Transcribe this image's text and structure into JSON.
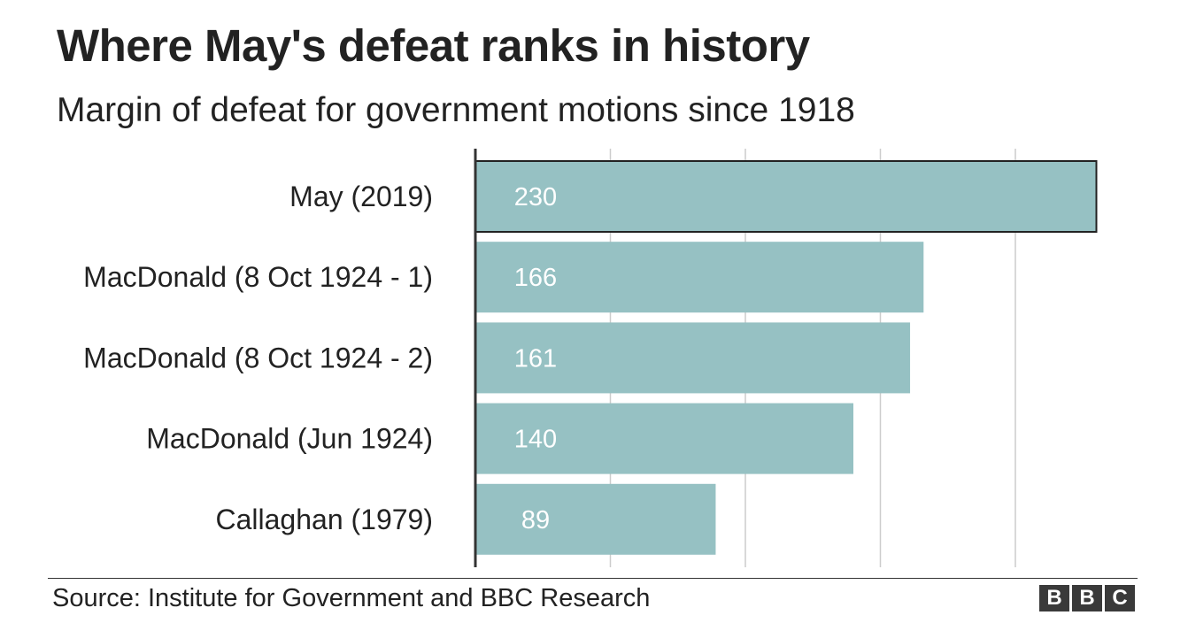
{
  "title": "Where May's defeat ranks in history",
  "subtitle": "Margin of defeat for government motions since 1918",
  "source": "Source: Institute for Government and BBC Research",
  "logo": {
    "letters": [
      "B",
      "B",
      "C"
    ]
  },
  "colors": {
    "bar": "#96c1c3",
    "highlight_outline": "#222222",
    "axis": "#333333",
    "grid": "#cccccc"
  },
  "chart_data": {
    "type": "bar",
    "orientation": "horizontal",
    "categories": [
      "May (2019)",
      "MacDonald (8 Oct 1924 - 1)",
      "MacDonald (8 Oct 1924 - 2)",
      "MacDonald (Jun 1924)",
      "Callaghan (1979)"
    ],
    "values": [
      230,
      166,
      161,
      140,
      89
    ],
    "data_labels": [
      "230",
      "166",
      "161",
      "140",
      "89"
    ],
    "highlighted": [
      0
    ],
    "xlim": [
      0,
      230
    ],
    "gridlines": [
      50,
      100,
      150,
      200
    ],
    "grid": true,
    "legend": "none"
  }
}
